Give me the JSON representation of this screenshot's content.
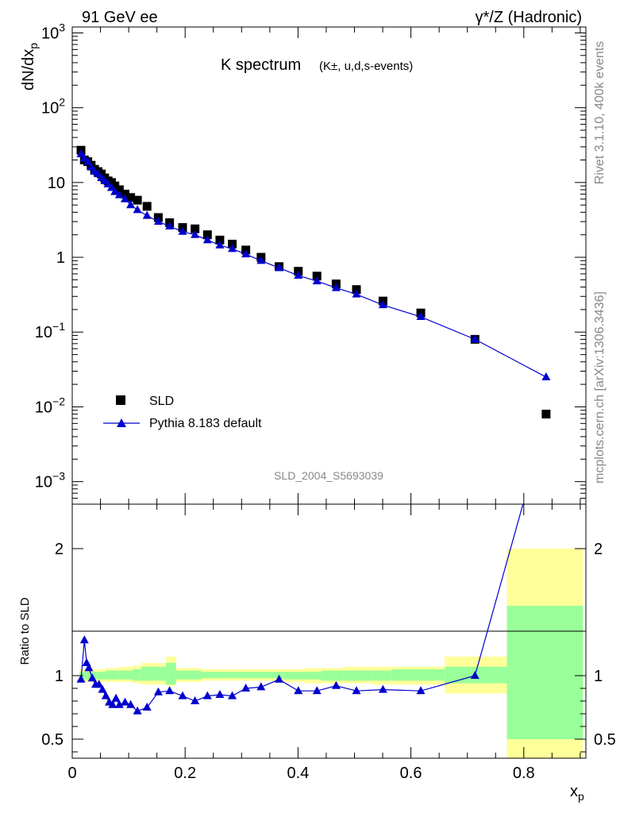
{
  "header": {
    "left": "91 GeV ee",
    "right": "γ*/Z (Hadronic)"
  },
  "side": {
    "top": "Rivet 3.1.10,  400k events",
    "bottom": "mcplots.cern.ch [arXiv:1306.3436]"
  },
  "chart_data": [
    {
      "type": "scatter",
      "panel": "main",
      "title": "K spectrum",
      "subtitle": "(K±, u,d,s-events)",
      "ylabel": "dN/dx_p",
      "xlim": [
        0,
        0.91
      ],
      "ylim": [
        0.0005,
        1200
      ],
      "yscale": "log",
      "yticks": [
        "10^-3",
        "10^-2",
        "10^-1",
        "1",
        "10",
        "10^2",
        "10^3"
      ],
      "legend": {
        "placement": "bottom-left",
        "entries": [
          "SLD",
          "Pythia 8.183 default"
        ]
      },
      "watermark": "SLD_2004_S5693039",
      "series": [
        {
          "name": "SLD",
          "marker": "square",
          "color": "#000000",
          "x": [
            0.0155,
            0.0215,
            0.0275,
            0.0335,
            0.0395,
            0.0455,
            0.0515,
            0.0575,
            0.0635,
            0.0695,
            0.0755,
            0.0835,
            0.0935,
            0.1035,
            0.1155,
            0.1325,
            0.1525,
            0.1725,
            0.1955,
            0.2175,
            0.2395,
            0.2615,
            0.2835,
            0.3075,
            0.3345,
            0.3665,
            0.4005,
            0.4335,
            0.4675,
            0.5035,
            0.5505,
            0.6175,
            0.7135,
            0.8395
          ],
          "y": [
            27,
            20,
            19,
            17,
            15,
            14,
            13,
            11.5,
            10.5,
            10,
            9,
            8,
            7,
            6.3,
            5.8,
            4.8,
            3.4,
            2.9,
            2.5,
            2.4,
            2.0,
            1.7,
            1.5,
            1.25,
            1.0,
            0.75,
            0.65,
            0.56,
            0.44,
            0.37,
            0.26,
            0.18,
            0.08,
            0.008
          ]
        },
        {
          "name": "Pythia 8.183 default",
          "marker": "triangle",
          "color": "#0000cc",
          "x": [
            0.0155,
            0.0215,
            0.0275,
            0.0335,
            0.0395,
            0.0455,
            0.0515,
            0.0575,
            0.0635,
            0.0695,
            0.0755,
            0.0835,
            0.0935,
            0.1035,
            0.1155,
            0.1325,
            0.1525,
            0.1725,
            0.1955,
            0.2175,
            0.2395,
            0.2615,
            0.2835,
            0.3075,
            0.3345,
            0.3665,
            0.4005,
            0.4335,
            0.4675,
            0.5035,
            0.5505,
            0.6175,
            0.7135,
            0.8395
          ],
          "y": [
            24,
            21,
            19,
            16,
            14,
            13,
            11.5,
            10.5,
            9.5,
            8.5,
            7.5,
            6.8,
            6.0,
            5.0,
            4.3,
            3.6,
            3.0,
            2.6,
            2.2,
            2.0,
            1.7,
            1.45,
            1.3,
            1.1,
            0.9,
            0.72,
            0.57,
            0.48,
            0.39,
            0.32,
            0.23,
            0.16,
            0.08,
            0.025
          ]
        }
      ]
    },
    {
      "type": "line",
      "panel": "ratio",
      "ylabel": "Ratio to SLD",
      "xlabel": "x_p",
      "xlim": [
        0,
        0.91
      ],
      "ylim": [
        0.35,
        2.35
      ],
      "yticks": [
        "0.5",
        "1",
        "2"
      ],
      "xticks": [
        "0",
        "0.2",
        "0.4",
        "0.6",
        "0.8"
      ],
      "bands": {
        "edges": [
          0.013,
          0.044,
          0.059,
          0.082,
          0.107,
          0.122,
          0.166,
          0.184,
          0.229,
          0.273,
          0.3,
          0.325,
          0.375,
          0.41,
          0.441,
          0.48,
          0.53,
          0.565,
          0.63,
          0.66,
          0.77,
          0.905
        ],
        "stat_lo": [
          0.97,
          0.97,
          0.97,
          0.97,
          0.96,
          0.96,
          0.93,
          0.97,
          0.98,
          0.98,
          0.98,
          0.98,
          0.97,
          0.97,
          0.96,
          0.96,
          0.96,
          0.96,
          0.96,
          0.94,
          0.5
        ],
        "stat_hi": [
          1.03,
          1.03,
          1.04,
          1.04,
          1.05,
          1.07,
          1.1,
          1.04,
          1.03,
          1.03,
          1.03,
          1.03,
          1.03,
          1.03,
          1.04,
          1.04,
          1.04,
          1.05,
          1.05,
          1.07,
          1.55
        ],
        "syst_lo": [
          0.95,
          0.95,
          0.95,
          0.95,
          0.94,
          0.93,
          0.92,
          0.95,
          0.96,
          0.96,
          0.96,
          0.96,
          0.95,
          0.94,
          0.94,
          0.94,
          0.93,
          0.93,
          0.93,
          0.86,
          0.35
        ],
        "syst_hi": [
          1.05,
          1.05,
          1.06,
          1.07,
          1.08,
          1.1,
          1.15,
          1.06,
          1.05,
          1.05,
          1.05,
          1.05,
          1.05,
          1.06,
          1.06,
          1.07,
          1.07,
          1.07,
          1.07,
          1.15,
          2.0
        ]
      },
      "series": [
        {
          "name": "Pythia 8.183 default",
          "marker": "triangle",
          "color": "#0000cc",
          "x": [
            0.0155,
            0.0215,
            0.0255,
            0.0295,
            0.0355,
            0.0415,
            0.0475,
            0.0535,
            0.0595,
            0.0655,
            0.0715,
            0.0775,
            0.0835,
            0.0935,
            0.1035,
            0.1155,
            0.1325,
            0.1525,
            0.1725,
            0.1955,
            0.2175,
            0.2395,
            0.2615,
            0.2835,
            0.3075,
            0.3345,
            0.3665,
            0.4005,
            0.4335,
            0.4675,
            0.5035,
            0.5505,
            0.6175,
            0.7135,
            0.8395
          ],
          "y": [
            0.97,
            1.28,
            1.1,
            1.06,
            0.98,
            0.93,
            0.93,
            0.89,
            0.84,
            0.79,
            0.77,
            0.82,
            0.77,
            0.79,
            0.77,
            0.72,
            0.75,
            0.87,
            0.88,
            0.84,
            0.8,
            0.84,
            0.85,
            0.84,
            0.9,
            0.91,
            0.97,
            0.88,
            0.88,
            0.92,
            0.88,
            0.89,
            0.88,
            1.0,
            3.0
          ]
        }
      ]
    }
  ]
}
